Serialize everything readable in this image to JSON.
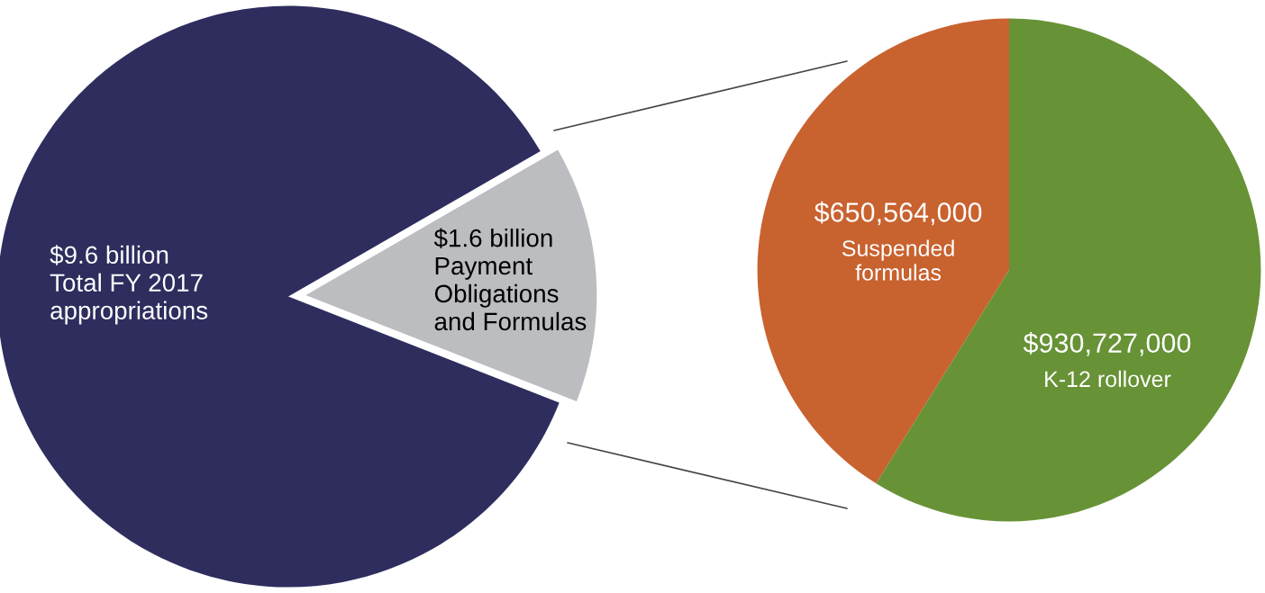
{
  "chart_data": [
    {
      "type": "pie",
      "categories": [
        "Total FY 2017 appropriations",
        "Payment Obligations and Formulas"
      ],
      "values": [
        9.6,
        1.6
      ],
      "value_labels": [
        "$9.6 billion",
        "$1.6 billion"
      ],
      "colors": [
        "#2e2d5e",
        "#bcbdc0"
      ]
    },
    {
      "type": "pie",
      "categories": [
        "Suspended formulas",
        "K-12 rollover"
      ],
      "values": [
        650564000,
        930727000
      ],
      "value_labels": [
        "$650,564,000",
        "$930,727,000"
      ],
      "colors": [
        "#c8622f",
        "#679236"
      ]
    }
  ]
}
